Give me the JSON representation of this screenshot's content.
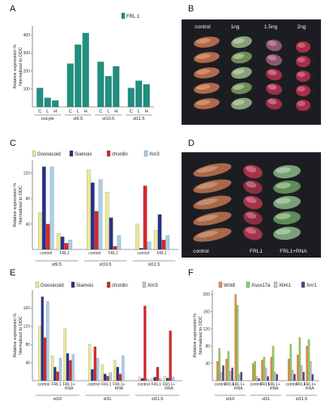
{
  "figure": {
    "panel_labels": [
      "A",
      "B",
      "C",
      "D",
      "E",
      "F"
    ],
    "colors": {
      "teal": "#1f8f80",
      "yellow": "#ecea95",
      "navy": "#27308e",
      "red": "#d7262c",
      "lightblue": "#a9cfe9",
      "orange": "#ee8a3e",
      "green": "#8fcf5b",
      "lavender": "#c9bfe0",
      "purple": "#5a3f7a",
      "photo_bg": "#1c1d22"
    }
  },
  "panel_b": {
    "labels": [
      "control",
      "1ng",
      "1.5ng",
      "2ng"
    ]
  },
  "panel_d": {
    "labels": [
      "control",
      "FRL1",
      "FRL1+RNA"
    ]
  },
  "chart_data": [
    {
      "panel": "A",
      "type": "bar",
      "ylabel": "Relative expression % Normalized to ODC",
      "ylim": [
        0,
        450
      ],
      "yticks": [
        "100",
        "200",
        "300",
        "400"
      ],
      "legend": [
        "FRL 1"
      ],
      "groups": [
        {
          "name": "oocyte",
          "categories": [
            "C",
            "L",
            "H"
          ],
          "values": [
            105,
            50,
            35
          ]
        },
        {
          "name": "st9.5",
          "categories": [
            "C",
            "L",
            "H"
          ],
          "values": [
            240,
            345,
            410
          ]
        },
        {
          "name": "st10.5",
          "categories": [
            "C",
            "L",
            "H"
          ],
          "values": [
            250,
            170,
            225
          ]
        },
        {
          "name": "st11.5",
          "categories": [
            "C",
            "L",
            "H"
          ],
          "values": [
            105,
            145,
            125
          ]
        }
      ]
    },
    {
      "panel": "C",
      "type": "bar",
      "ylabel": "Relative expression % Normalized to ODC",
      "ylim": [
        0,
        140
      ],
      "yticks": [
        "40",
        "80",
        "120"
      ],
      "legend": [
        "Goosecoid",
        "Siamois",
        "chordin",
        "Xnr3"
      ],
      "groups": [
        {
          "name": "st9.5",
          "categories": [
            "control",
            "FRL1"
          ],
          "series_values": [
            [
              58,
              130,
              40,
              130
            ],
            [
              25,
              20,
              10,
              15
            ]
          ]
        },
        {
          "name": "st10.5",
          "categories": [
            "control",
            "FRL1"
          ],
          "series_values": [
            [
              125,
              105,
              60,
              110
            ],
            [
              90,
              50,
              5,
              22
            ]
          ]
        },
        {
          "name": "st11.5",
          "categories": [
            "control",
            "FRL1"
          ],
          "series_values": [
            [
              40,
              2,
              100,
              12
            ],
            [
              30,
              55,
              15,
              22
            ]
          ]
        }
      ]
    },
    {
      "panel": "E",
      "type": "bar",
      "ylabel": "Relative expression % Normalized to ODC",
      "ylim": [
        0,
        200
      ],
      "yticks": [
        "40",
        "80",
        "120",
        "160"
      ],
      "legend": [
        "Goosecoid",
        "Siamois",
        "chordin",
        "Xnr3"
      ],
      "groups": [
        {
          "name": "st10",
          "categories": [
            "control",
            "FRL1",
            "FRL1+RNA"
          ],
          "series_values": [
            [
              120,
              185,
              95,
              175
            ],
            [
              55,
              30,
              20,
              50
            ],
            [
              115,
              60,
              45,
              58
            ]
          ]
        },
        {
          "name": "st11",
          "categories": [
            "control",
            "FRL1",
            "FRL1+RNA"
          ],
          "series_values": [
            [
              80,
              25,
              75,
              50
            ],
            [
              35,
              15,
              10,
              18
            ],
            [
              45,
              30,
              15,
              55
            ]
          ]
        },
        {
          "name": "st11.5",
          "categories": [
            "control",
            "FRL1",
            "FRL1+RNA"
          ],
          "series_values": [
            [
              8,
              5,
              165,
              4
            ],
            [
              5,
              8,
              30,
              5
            ],
            [
              10,
              6,
              110,
              8
            ]
          ]
        }
      ]
    },
    {
      "panel": "F",
      "type": "bar",
      "ylabel": "Relative expression % Normalized to ODC",
      "ylim": [
        0,
        210
      ],
      "yticks": [
        "40",
        "80",
        "120",
        "160",
        "200"
      ],
      "legend": [
        "Wnt8",
        "Xsox17a",
        "Xlim1",
        "Xnr1"
      ],
      "groups": [
        {
          "name": "st10",
          "categories": [
            "control",
            "FRL1",
            "FRL1+RNA"
          ],
          "series_values": [
            [
              45,
              75,
              20,
              35
            ],
            [
              50,
              68,
              22,
              30
            ],
            [
              200,
              175,
              15,
              20
            ]
          ]
        },
        {
          "name": "st11",
          "categories": [
            "control",
            "FRL1",
            "FRL1+RNA"
          ],
          "series_values": [
            [
              40,
              45,
              10,
              5
            ],
            [
              48,
              55,
              30,
              10
            ],
            [
              55,
              80,
              20,
              15
            ]
          ]
        },
        {
          "name": "st11.5",
          "categories": [
            "control",
            "FRL1",
            "FRL1+RNA"
          ],
          "series_values": [
            [
              50,
              85,
              25,
              15
            ],
            [
              60,
              100,
              35,
              20
            ],
            [
              80,
              95,
              45,
              15
            ]
          ]
        }
      ]
    }
  ]
}
